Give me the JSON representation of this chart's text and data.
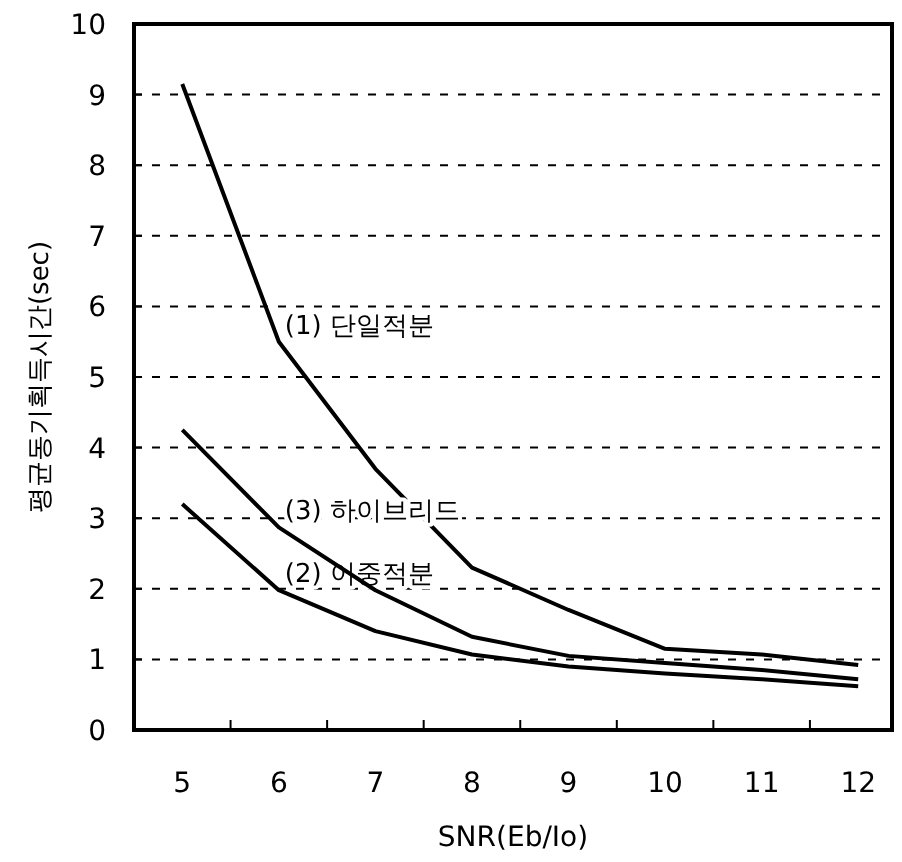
{
  "chart_data": {
    "type": "line",
    "xlabel": "SNR(Eb/Io)",
    "ylabel": "평균동기획득시간(sec)",
    "categories": [
      "5",
      "6",
      "7",
      "8",
      "9",
      "10",
      "11",
      "12"
    ],
    "series": [
      {
        "name": "(1) 단일적분",
        "color": "#000000",
        "values": [
          9.15,
          5.5,
          3.7,
          2.3,
          1.7,
          1.15,
          1.07,
          0.92
        ]
      },
      {
        "name": "(2) 이중적분",
        "color": "#000000",
        "values": [
          3.2,
          1.98,
          1.4,
          1.07,
          0.9,
          0.8,
          0.72,
          0.62
        ]
      },
      {
        "name": "(3) 하이브리드",
        "color": "#000000",
        "values": [
          4.25,
          2.87,
          1.98,
          1.32,
          1.05,
          0.95,
          0.85,
          0.72
        ]
      }
    ],
    "ylim": [
      0,
      10
    ],
    "yticks": [
      0,
      1,
      2,
      3,
      4,
      5,
      6,
      7,
      8,
      9,
      10
    ],
    "grid": "y",
    "marker": "none",
    "line_style": "solid"
  }
}
